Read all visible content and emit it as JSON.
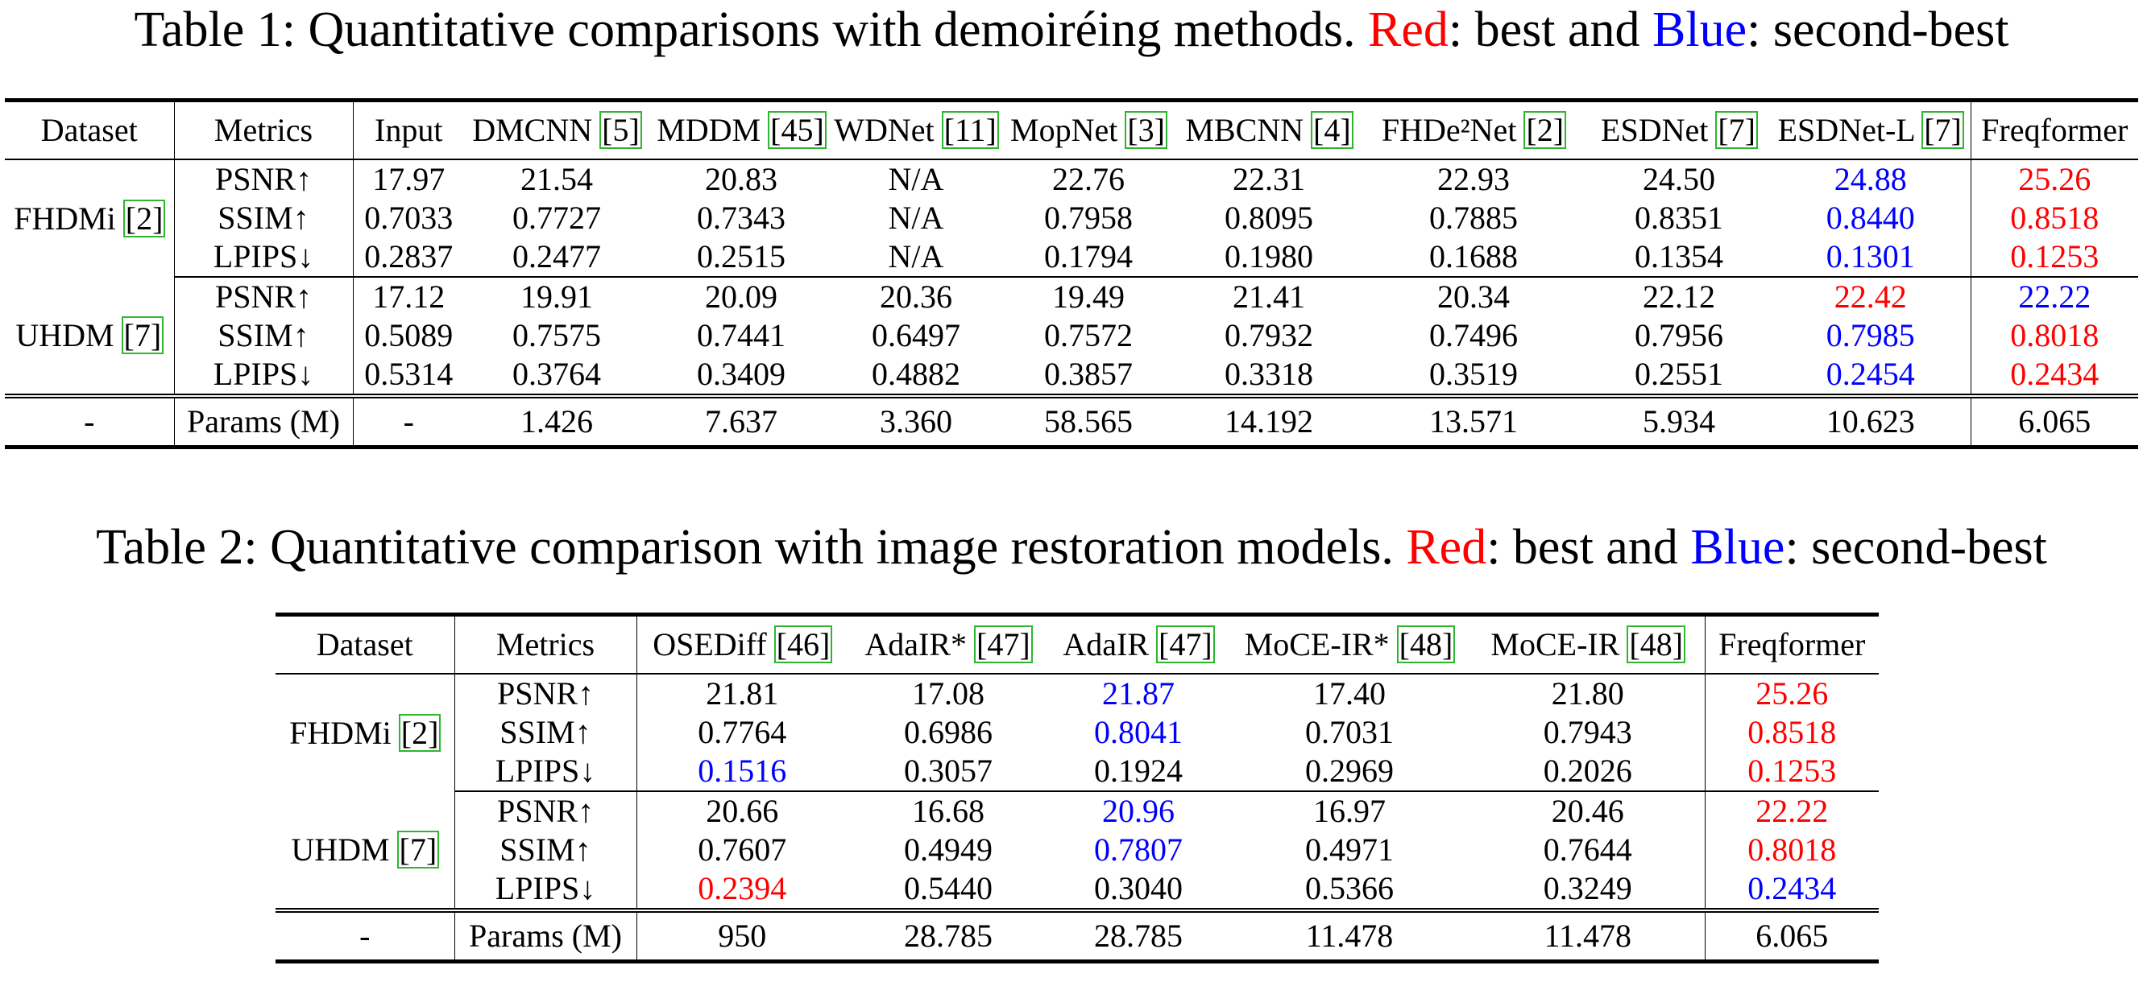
{
  "table1": {
    "caption": {
      "prefix": "Table 1: Quantitative comparisons with demoiréing methods. ",
      "red_word": "Red",
      "mid": ": best and ",
      "blue_word": "Blue",
      "suffix": ": second-best"
    },
    "header": {
      "dataset": "Dataset",
      "metrics": "Metrics",
      "methods": [
        {
          "name": "Input",
          "ref": ""
        },
        {
          "name": "DMCNN ",
          "ref": "[5]"
        },
        {
          "name": "MDDM ",
          "ref": "[45]"
        },
        {
          "name": "WDNet ",
          "ref": "[11]"
        },
        {
          "name": "MopNet ",
          "ref": "[3]"
        },
        {
          "name": "MBCNN ",
          "ref": "[4]"
        },
        {
          "name": "FHDe²Net ",
          "ref": "[2]"
        },
        {
          "name": "ESDNet ",
          "ref": "[7]"
        },
        {
          "name": "ESDNet-L ",
          "ref": "[7]"
        },
        {
          "name": "Freqformer",
          "ref": ""
        }
      ]
    },
    "groups": [
      {
        "dataset": "FHDMi ",
        "dataset_ref": "[2]",
        "rows": [
          {
            "metric": "PSNR↑",
            "values": [
              "17.97",
              "21.54",
              "20.83",
              "N/A",
              "22.76",
              "22.31",
              "22.93",
              "24.50",
              "24.88",
              "25.26"
            ],
            "colors": [
              "",
              "",
              "",
              "",
              "",
              "",
              "",
              "",
              "blue",
              "red"
            ]
          },
          {
            "metric": "SSIM↑",
            "values": [
              "0.7033",
              "0.7727",
              "0.7343",
              "N/A",
              "0.7958",
              "0.8095",
              "0.7885",
              "0.8351",
              "0.8440",
              "0.8518"
            ],
            "colors": [
              "",
              "",
              "",
              "",
              "",
              "",
              "",
              "",
              "blue",
              "red"
            ]
          },
          {
            "metric": "LPIPS↓",
            "values": [
              "0.2837",
              "0.2477",
              "0.2515",
              "N/A",
              "0.1794",
              "0.1980",
              "0.1688",
              "0.1354",
              "0.1301",
              "0.1253"
            ],
            "colors": [
              "",
              "",
              "",
              "",
              "",
              "",
              "",
              "",
              "blue",
              "red"
            ]
          }
        ]
      },
      {
        "dataset": "UHDM ",
        "dataset_ref": "[7]",
        "rows": [
          {
            "metric": "PSNR↑",
            "values": [
              "17.12",
              "19.91",
              "20.09",
              "20.36",
              "19.49",
              "21.41",
              "20.34",
              "22.12",
              "22.42",
              "22.22"
            ],
            "colors": [
              "",
              "",
              "",
              "",
              "",
              "",
              "",
              "",
              "red",
              "blue"
            ]
          },
          {
            "metric": "SSIM↑",
            "values": [
              "0.5089",
              "0.7575",
              "0.7441",
              "0.6497",
              "0.7572",
              "0.7932",
              "0.7496",
              "0.7956",
              "0.7985",
              "0.8018"
            ],
            "colors": [
              "",
              "",
              "",
              "",
              "",
              "",
              "",
              "",
              "blue",
              "red"
            ]
          },
          {
            "metric": "LPIPS↓",
            "values": [
              "0.5314",
              "0.3764",
              "0.3409",
              "0.4882",
              "0.3857",
              "0.3318",
              "0.3519",
              "0.2551",
              "0.2454",
              "0.2434"
            ],
            "colors": [
              "",
              "",
              "",
              "",
              "",
              "",
              "",
              "",
              "blue",
              "red"
            ]
          }
        ]
      }
    ],
    "params_row": {
      "dataset": "-",
      "metric": "Params (M)",
      "values": [
        "-",
        "1.426",
        "7.637",
        "3.360",
        "58.565",
        "14.192",
        "13.571",
        "5.934",
        "10.623",
        "6.065"
      ]
    }
  },
  "table2": {
    "caption": {
      "prefix": "Table 2: Quantitative comparison with image restoration models. ",
      "red_word": "Red",
      "mid": ": best and ",
      "blue_word": "Blue",
      "suffix": ": second-best"
    },
    "header": {
      "dataset": "Dataset",
      "metrics": "Metrics",
      "methods": [
        {
          "name": "OSEDiff ",
          "ref": "[46]"
        },
        {
          "name": "AdaIR* ",
          "ref": "[47]"
        },
        {
          "name": "AdaIR ",
          "ref": "[47]"
        },
        {
          "name": "MoCE-IR* ",
          "ref": "[48]"
        },
        {
          "name": "MoCE-IR ",
          "ref": "[48]"
        },
        {
          "name": "Freqformer",
          "ref": ""
        }
      ]
    },
    "groups": [
      {
        "dataset": "FHDMi ",
        "dataset_ref": "[2]",
        "rows": [
          {
            "metric": "PSNR↑",
            "values": [
              "21.81",
              "17.08",
              "21.87",
              "17.40",
              "21.80",
              "25.26"
            ],
            "colors": [
              "",
              "",
              "blue",
              "",
              "",
              "red"
            ]
          },
          {
            "metric": "SSIM↑",
            "values": [
              "0.7764",
              "0.6986",
              "0.8041",
              "0.7031",
              "0.7943",
              "0.8518"
            ],
            "colors": [
              "",
              "",
              "blue",
              "",
              "",
              "red"
            ]
          },
          {
            "metric": "LPIPS↓",
            "values": [
              "0.1516",
              "0.3057",
              "0.1924",
              "0.2969",
              "0.2026",
              "0.1253"
            ],
            "colors": [
              "blue",
              "",
              "",
              "",
              "",
              "red"
            ]
          }
        ]
      },
      {
        "dataset": "UHDM ",
        "dataset_ref": "[7]",
        "rows": [
          {
            "metric": "PSNR↑",
            "values": [
              "20.66",
              "16.68",
              "20.96",
              "16.97",
              "20.46",
              "22.22"
            ],
            "colors": [
              "",
              "",
              "blue",
              "",
              "",
              "red"
            ]
          },
          {
            "metric": "SSIM↑",
            "values": [
              "0.7607",
              "0.4949",
              "0.7807",
              "0.4971",
              "0.7644",
              "0.8018"
            ],
            "colors": [
              "",
              "",
              "blue",
              "",
              "",
              "red"
            ]
          },
          {
            "metric": "LPIPS↓",
            "values": [
              "0.2394",
              "0.5440",
              "0.3040",
              "0.5366",
              "0.3249",
              "0.2434"
            ],
            "colors": [
              "red",
              "",
              "",
              "",
              "",
              "blue"
            ]
          }
        ]
      }
    ],
    "params_row": {
      "dataset": "-",
      "metric": "Params (M)",
      "values": [
        "950",
        "28.785",
        "28.785",
        "11.478",
        "11.478",
        "6.065"
      ]
    }
  },
  "colors": {
    "best": "#ff0000",
    "second": "#0000ff",
    "citation_box": "#2fb52f"
  }
}
